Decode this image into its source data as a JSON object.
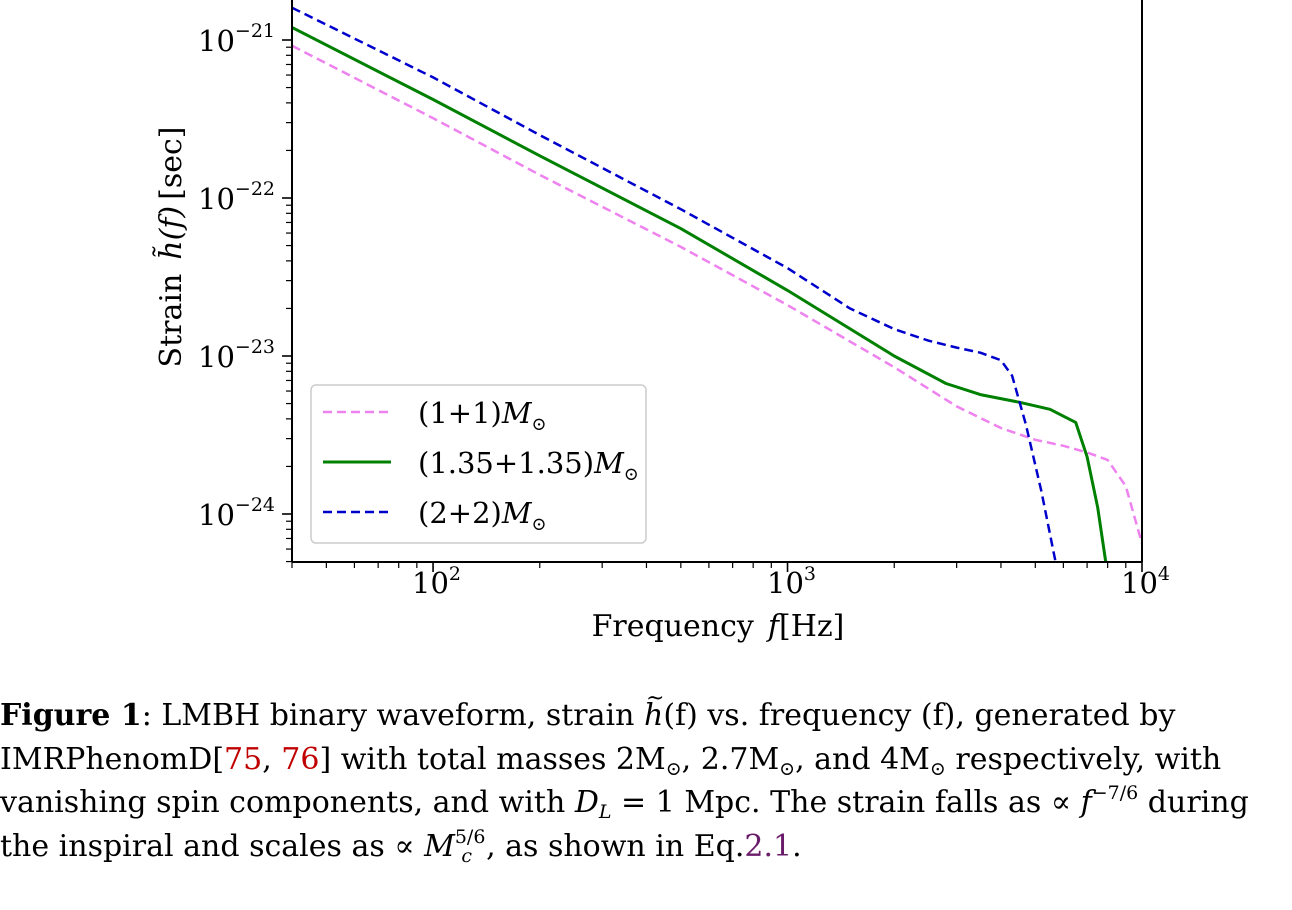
{
  "chart_data": {
    "type": "line",
    "xscale": "log",
    "yscale": "log",
    "xlim": [
      40,
      10000
    ],
    "ylim": [
      5e-25,
      1.6e-21
    ],
    "xlabel_prefix": "Frequency",
    "xlabel_var": "f",
    "xlabel_unit": "[Hz]",
    "ylabel_prefix": "Strain",
    "ylabel_var": "h̃(f)",
    "ylabel_unit": "[sec]",
    "x_ticks": [
      {
        "base": "10",
        "exp": "2",
        "value": 100
      },
      {
        "base": "10",
        "exp": "3",
        "value": 1000
      },
      {
        "base": "10",
        "exp": "4",
        "value": 10000
      }
    ],
    "y_ticks": [
      {
        "base": "10",
        "exp": "−21",
        "value": 1e-21
      },
      {
        "base": "10",
        "exp": "−22",
        "value": 1e-22
      },
      {
        "base": "10",
        "exp": "−23",
        "value": 1e-23
      },
      {
        "base": "10",
        "exp": "−24",
        "value": 1e-24
      }
    ],
    "legend_position": "lower-left",
    "series": [
      {
        "name": "(1+1)M⊙",
        "color": "#ee82ee",
        "style": "dashed",
        "x": [
          40,
          100,
          200,
          500,
          1000,
          2000,
          3000,
          4000,
          5000,
          6000,
          7000,
          8000,
          9000,
          10000
        ],
        "y": [
          9.2e-22,
          3.2e-22,
          1.4e-22,
          4.9e-23,
          2.1e-23,
          8.5e-24,
          4.8e-24,
          3.5e-24,
          2.95e-24,
          2.7e-24,
          2.45e-24,
          2.2e-24,
          1.5e-24,
          6.5e-25
        ]
      },
      {
        "name": "(1.35+1.35)M⊙",
        "color": "#008000",
        "style": "solid",
        "x": [
          40,
          100,
          200,
          500,
          1000,
          2000,
          2800,
          3500,
          4500,
          5500,
          6500,
          7000,
          7500,
          7900
        ],
        "y": [
          1.2e-21,
          4.2e-22,
          1.85e-22,
          6.4e-23,
          2.6e-23,
          1e-23,
          6.7e-24,
          5.7e-24,
          5.1e-24,
          4.6e-24,
          3.8e-24,
          2.3e-24,
          1.1e-24,
          5e-25
        ]
      },
      {
        "name": "(2+2)M⊙",
        "color": "#0000cc",
        "style": "dashed",
        "x": [
          40,
          100,
          200,
          500,
          1000,
          1500,
          2000,
          2500,
          3000,
          3500,
          4000,
          4300,
          4700,
          5200,
          5700
        ],
        "y": [
          1.6e-21,
          5.8e-22,
          2.5e-22,
          8.5e-23,
          3.6e-23,
          2e-23,
          1.48e-23,
          1.25e-23,
          1.13e-23,
          1.05e-23,
          9.4e-24,
          7.5e-24,
          3.7e-24,
          1.4e-24,
          5e-25
        ]
      }
    ]
  },
  "legend": {
    "items": [
      {
        "prefix": "(1+1)",
        "var": "M",
        "sub": "⊙"
      },
      {
        "prefix": "(1.35+1.35)",
        "var": "M",
        "sub": "⊙"
      },
      {
        "prefix": "(2+2)",
        "var": "M",
        "sub": "⊙"
      }
    ]
  },
  "caption": {
    "label": "Figure 1",
    "text1": ":  LMBH binary waveform, strain ",
    "h": "h",
    "text2": "(f)  vs.  frequency (f), generated by",
    "model": "IMRPhenomD",
    "ref1": "75",
    "ref2": "76",
    "text3": " with  total  masses  2M",
    "text4": ",  2.7M",
    "text5": ",  and  4M",
    "text6": "  respectively,  with",
    "sun": "⊙",
    "line3a": "vanishing spin components, and with ",
    "dl": "D",
    "dl_sub": "L",
    "line3b": " = 1 Mpc. The strain falls as ∝ ",
    "f": "f",
    "fexp": "−7/6",
    "line3c": " during",
    "line4a": "the inspiral and scales as ∝ ",
    "mc": "M",
    "mc_sub": "c",
    "mc_exp": "5/6",
    "line4b": ", as shown in Eq.",
    "eq": "2.1",
    "line4c": "."
  }
}
